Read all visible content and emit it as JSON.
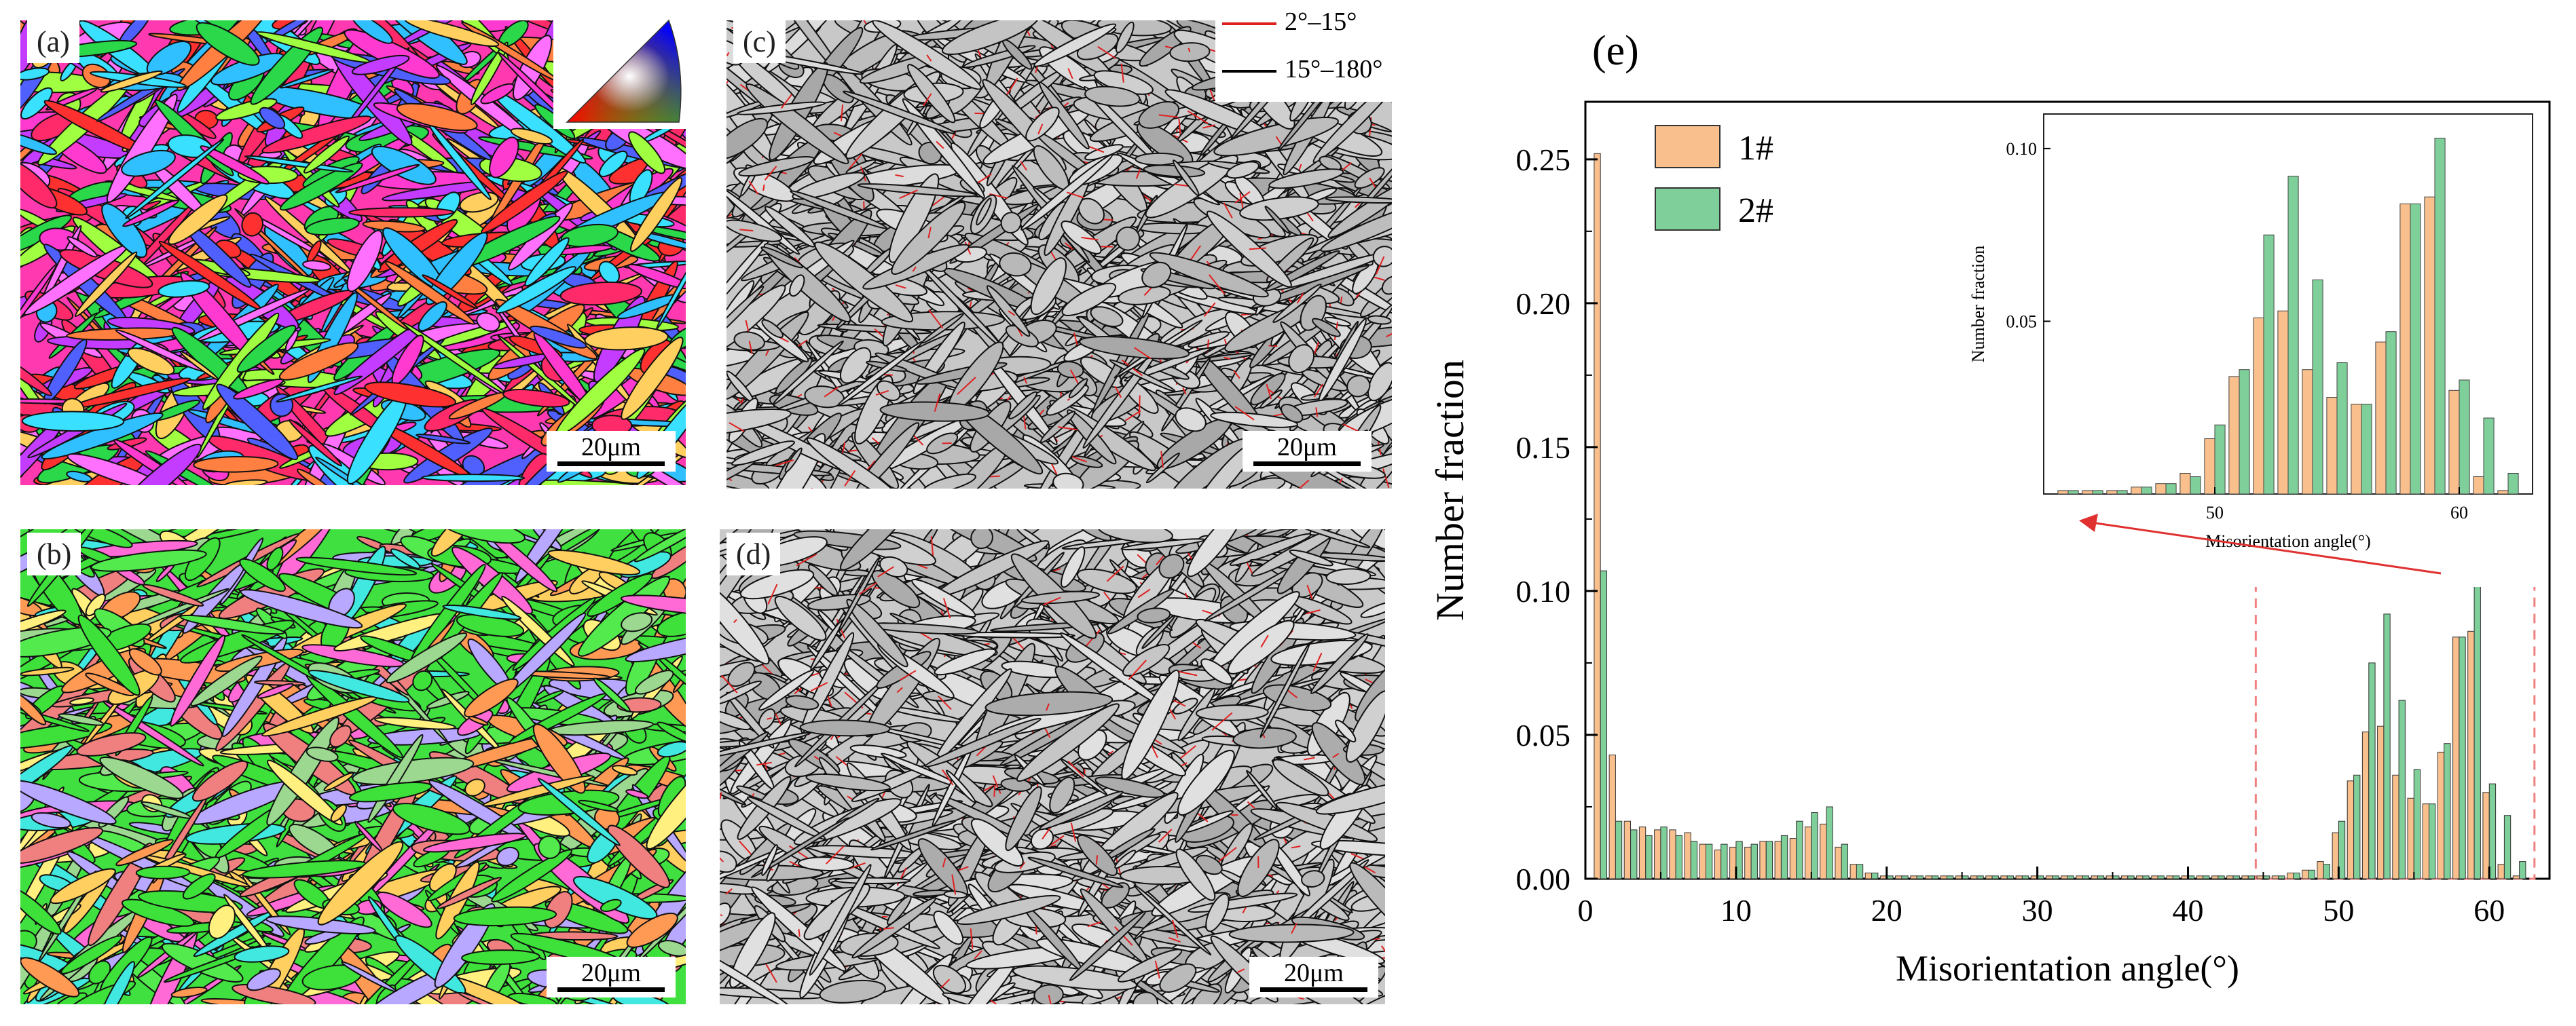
{
  "panels": {
    "a": {
      "label": "(a)",
      "scale": "20μm"
    },
    "b": {
      "label": "(b)",
      "scale": "20μm"
    },
    "c": {
      "label": "(c)",
      "scale": "20μm"
    },
    "d": {
      "label": "(d)",
      "scale": "20μm"
    }
  },
  "gb_legend": {
    "low": {
      "label": "2°–15°",
      "color": "#e02020"
    },
    "high": {
      "label": "15°–180°",
      "color": "#000000"
    }
  },
  "chart_data": [
    {
      "type": "bar",
      "panel_label": "(e)",
      "title": "",
      "xlabel": "Misorientation angle(°)",
      "ylabel": "Number fraction",
      "xlim": [
        0,
        64
      ],
      "ylim": [
        0,
        0.27
      ],
      "xticks": [
        0,
        10,
        20,
        30,
        40,
        50,
        60
      ],
      "yticks": [
        0.0,
        0.05,
        0.1,
        0.15,
        0.2,
        0.25
      ],
      "bin_width": 1,
      "x": [
        1,
        2,
        3,
        4,
        5,
        6,
        7,
        8,
        9,
        10,
        11,
        12,
        13,
        14,
        15,
        16,
        17,
        18,
        19,
        20,
        21,
        22,
        23,
        24,
        25,
        26,
        27,
        28,
        29,
        30,
        31,
        32,
        33,
        34,
        35,
        36,
        37,
        38,
        39,
        40,
        41,
        42,
        43,
        44,
        45,
        46,
        47,
        48,
        49,
        50,
        51,
        52,
        53,
        54,
        55,
        56,
        57,
        58,
        59,
        60,
        61,
        62
      ],
      "series": [
        {
          "name": "1#",
          "color": "#f9c08e",
          "values": [
            0.252,
            0.043,
            0.02,
            0.018,
            0.017,
            0.017,
            0.016,
            0.012,
            0.01,
            0.011,
            0.011,
            0.013,
            0.013,
            0.014,
            0.018,
            0.019,
            0.011,
            0.005,
            0.002,
            0.001,
            0.001,
            0.001,
            0.001,
            0.001,
            0.001,
            0.001,
            0.001,
            0.001,
            0.001,
            0.001,
            0.001,
            0.001,
            0.001,
            0.001,
            0.001,
            0.001,
            0.001,
            0.001,
            0.001,
            0.001,
            0.001,
            0.001,
            0.001,
            0.001,
            0.001,
            0.001,
            0.002,
            0.003,
            0.006,
            0.016,
            0.034,
            0.051,
            0.053,
            0.036,
            0.028,
            0.026,
            0.044,
            0.084,
            0.086,
            0.03,
            0.005,
            0.001
          ]
        },
        {
          "name": "2#",
          "color": "#7fcf9a",
          "values": [
            0.107,
            0.02,
            0.017,
            0.015,
            0.018,
            0.015,
            0.013,
            0.012,
            0.012,
            0.013,
            0.012,
            0.013,
            0.015,
            0.02,
            0.023,
            0.025,
            0.012,
            0.005,
            0.002,
            0.001,
            0.001,
            0.001,
            0.001,
            0.001,
            0.001,
            0.001,
            0.001,
            0.001,
            0.001,
            0.001,
            0.001,
            0.001,
            0.001,
            0.001,
            0.001,
            0.001,
            0.001,
            0.001,
            0.001,
            0.001,
            0.001,
            0.001,
            0.001,
            0.001,
            0.001,
            0.001,
            0.002,
            0.003,
            0.005,
            0.02,
            0.036,
            0.075,
            0.092,
            0.062,
            0.038,
            0.026,
            0.047,
            0.084,
            0.103,
            0.033,
            0.022,
            0.006
          ]
        }
      ],
      "highlight_region": [
        44.5,
        63
      ]
    },
    {
      "type": "bar",
      "role": "inset",
      "xlabel": "Misorientation angle(°)",
      "ylabel": "Number fraction",
      "xlim": [
        43,
        63
      ],
      "ylim": [
        0,
        0.11
      ],
      "xticks": [
        50,
        60
      ],
      "yticks": [
        0.05,
        0.1
      ],
      "x": [
        44,
        45,
        46,
        47,
        48,
        49,
        50,
        51,
        52,
        53,
        54,
        55,
        56,
        57,
        58,
        59,
        60,
        61,
        62
      ],
      "series": [
        {
          "name": "1#",
          "color": "#f9c08e",
          "values": [
            0.001,
            0.001,
            0.001,
            0.002,
            0.003,
            0.006,
            0.016,
            0.034,
            0.051,
            0.053,
            0.036,
            0.028,
            0.026,
            0.044,
            0.084,
            0.086,
            0.03,
            0.005,
            0.001
          ]
        },
        {
          "name": "2#",
          "color": "#7fcf9a",
          "values": [
            0.001,
            0.001,
            0.001,
            0.002,
            0.003,
            0.005,
            0.02,
            0.036,
            0.075,
            0.092,
            0.062,
            0.038,
            0.026,
            0.047,
            0.084,
            0.103,
            0.033,
            0.022,
            0.006
          ]
        }
      ]
    }
  ]
}
